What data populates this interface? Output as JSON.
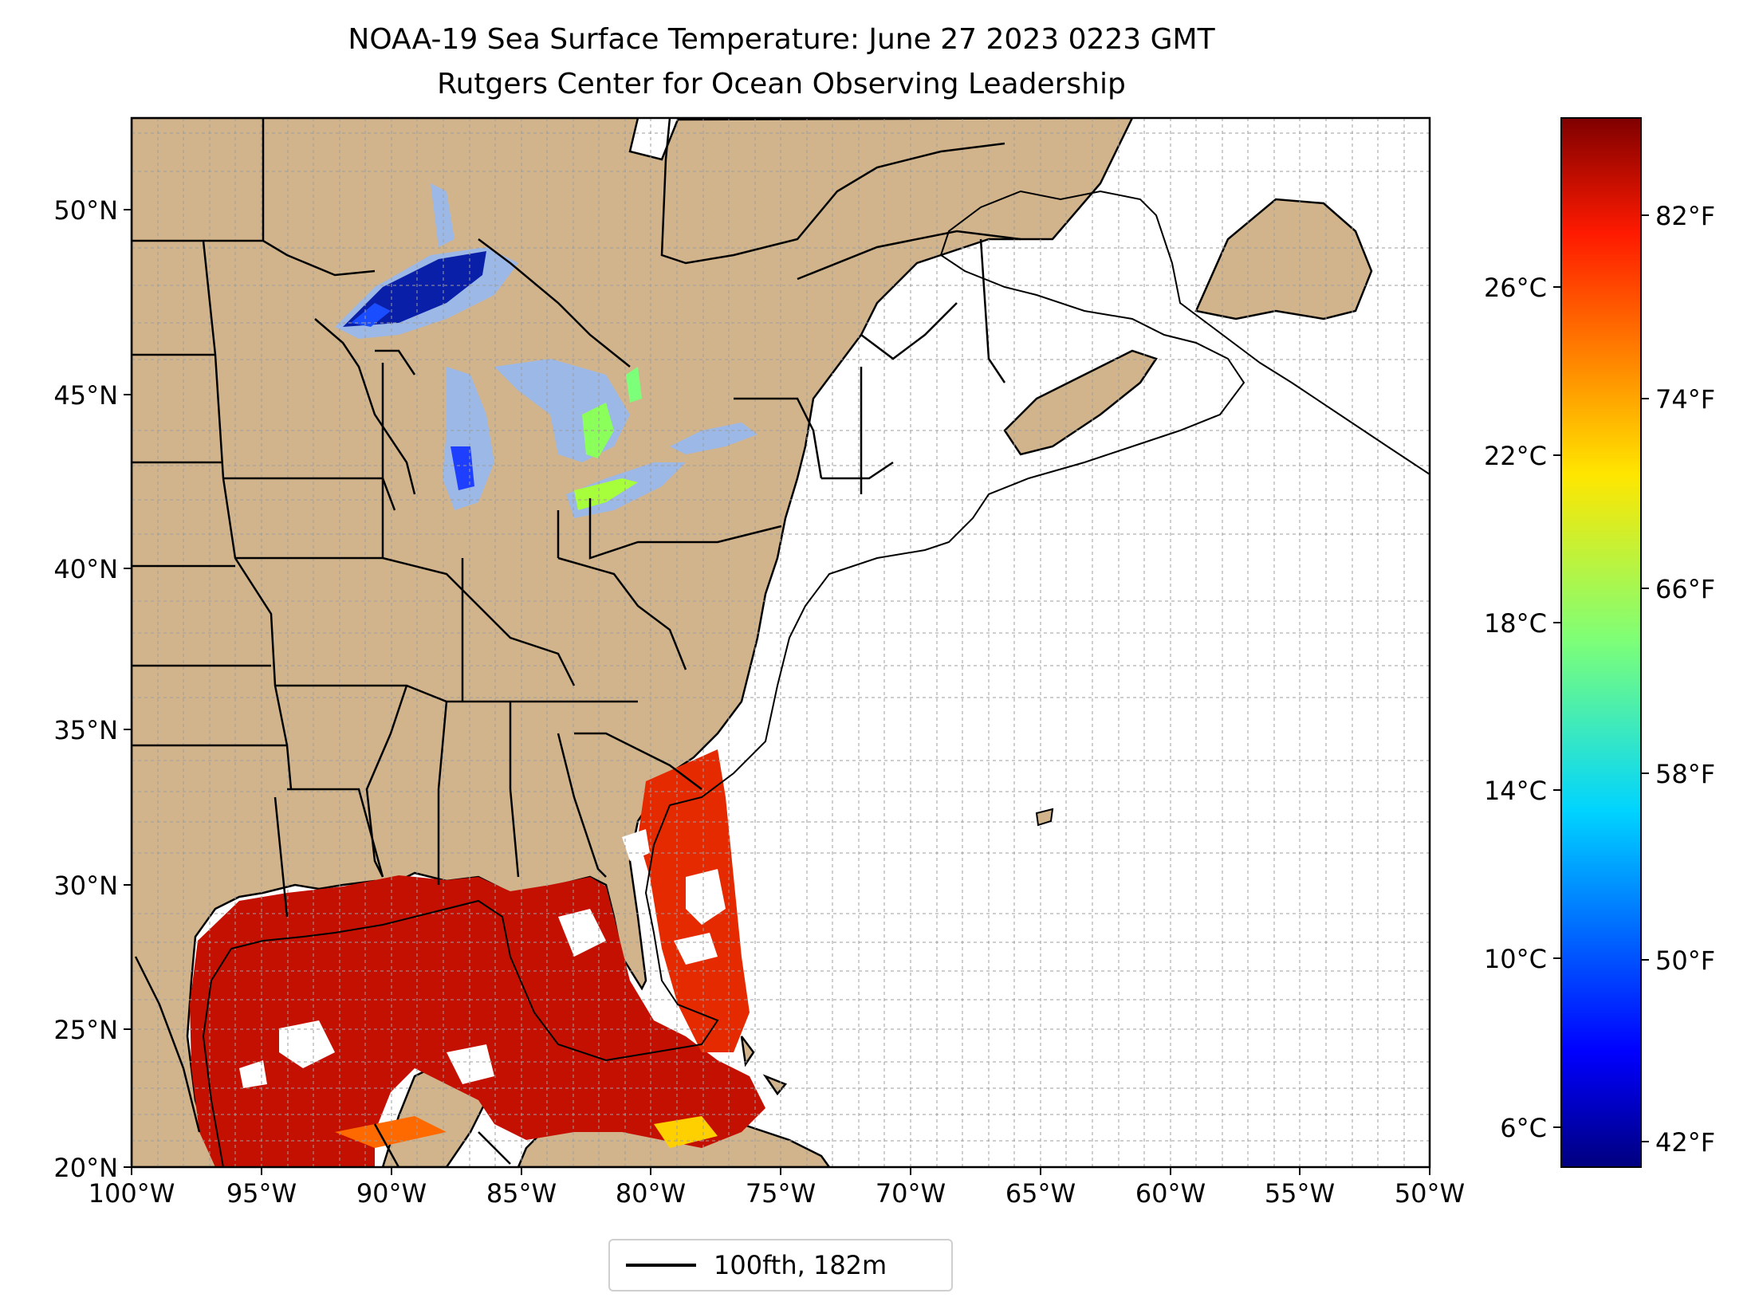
{
  "title": {
    "line1": "NOAA-19 Sea Surface Temperature: June 27 2023 0223 GMT",
    "line2": "Rutgers Center for Ocean Observing Leadership"
  },
  "map": {
    "extent": {
      "lon": [
        -100,
        -50
      ],
      "lat": [
        20,
        52.2
      ]
    },
    "lon_ticks": [
      "100°W",
      "95°W",
      "90°W",
      "85°W",
      "80°W",
      "75°W",
      "70°W",
      "65°W",
      "60°W",
      "55°W",
      "50°W"
    ],
    "lat_ticks": [
      "20°N",
      "25°N",
      "30°N",
      "35°N",
      "40°N",
      "45°N",
      "50°N"
    ],
    "land_color": "#d2b48c",
    "lake_color": "#9cb8e6",
    "gridlines": true
  },
  "colorbar": {
    "colormap": "jet",
    "celsius_ticks": [
      "6°C",
      "10°C",
      "14°C",
      "18°C",
      "22°C",
      "26°C"
    ],
    "fahrenheit_ticks": [
      "42°F",
      "50°F",
      "58°F",
      "66°F",
      "74°F",
      "82°F"
    ]
  },
  "legend": {
    "label": "100fth, 182m",
    "line_color": "#000000"
  }
}
